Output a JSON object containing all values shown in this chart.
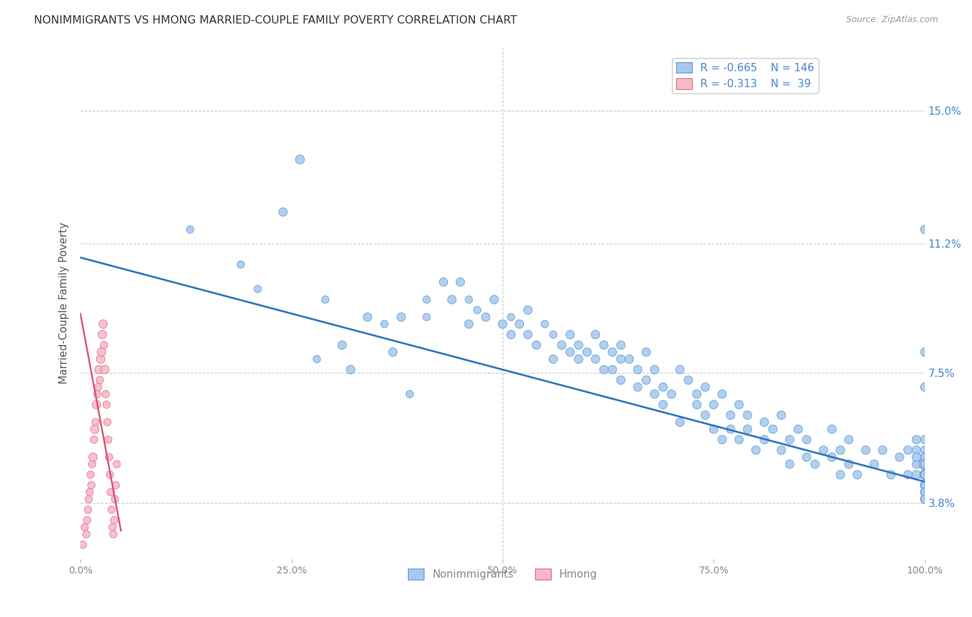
{
  "title": "NONIMMIGRANTS VS HMONG MARRIED-COUPLE FAMILY POVERTY CORRELATION CHART",
  "source": "Source: ZipAtlas.com",
  "ylabel": "Married-Couple Family Poverty",
  "ytick_labels": [
    "15.0%",
    "11.2%",
    "7.5%",
    "3.8%"
  ],
  "ytick_values": [
    0.15,
    0.112,
    0.075,
    0.038
  ],
  "xmin": 0.0,
  "xmax": 1.0,
  "ymin": 0.022,
  "ymax": 0.168,
  "legend_r_blue": "-0.665",
  "legend_n_blue": "146",
  "legend_r_pink": "-0.313",
  "legend_n_pink": "39",
  "blue_color": "#a8c8f0",
  "blue_edge_color": "#5599cc",
  "pink_color": "#f8b8c8",
  "pink_edge_color": "#e06888",
  "blue_line_color": "#3377bb",
  "pink_line_color": "#dd5577",
  "blue_trend": [
    0.0,
    1.0,
    0.108,
    0.044
  ],
  "pink_trend": [
    0.0,
    0.048,
    0.092,
    0.03
  ],
  "background_color": "#ffffff",
  "grid_color": "#cccccc",
  "blue_scatter_x": [
    0.13,
    0.19,
    0.21,
    0.24,
    0.26,
    0.28,
    0.29,
    0.31,
    0.32,
    0.34,
    0.36,
    0.37,
    0.38,
    0.39,
    0.41,
    0.41,
    0.43,
    0.44,
    0.45,
    0.46,
    0.46,
    0.47,
    0.48,
    0.49,
    0.5,
    0.51,
    0.51,
    0.52,
    0.53,
    0.53,
    0.54,
    0.55,
    0.56,
    0.56,
    0.57,
    0.58,
    0.58,
    0.59,
    0.59,
    0.6,
    0.61,
    0.61,
    0.62,
    0.62,
    0.63,
    0.63,
    0.64,
    0.64,
    0.64,
    0.65,
    0.66,
    0.66,
    0.67,
    0.67,
    0.68,
    0.68,
    0.69,
    0.69,
    0.7,
    0.71,
    0.71,
    0.72,
    0.73,
    0.73,
    0.74,
    0.74,
    0.75,
    0.75,
    0.76,
    0.76,
    0.77,
    0.77,
    0.78,
    0.78,
    0.79,
    0.79,
    0.8,
    0.81,
    0.81,
    0.82,
    0.83,
    0.83,
    0.84,
    0.84,
    0.85,
    0.86,
    0.86,
    0.87,
    0.88,
    0.89,
    0.89,
    0.9,
    0.9,
    0.91,
    0.91,
    0.92,
    0.93,
    0.94,
    0.95,
    0.96,
    0.97,
    0.98,
    0.98,
    0.99,
    0.99,
    0.99,
    0.99,
    0.99,
    1.0,
    1.0,
    1.0,
    1.0,
    1.0,
    1.0,
    1.0,
    1.0,
    1.0,
    1.0,
    1.0,
    1.0,
    1.0,
    1.0,
    1.0,
    1.0,
    1.0,
    1.0,
    1.0,
    1.0,
    1.0,
    1.0,
    1.0,
    1.0,
    1.0,
    1.0,
    1.0,
    1.0,
    1.0,
    1.0,
    1.0,
    1.0,
    1.0,
    1.0,
    1.0,
    1.0,
    1.0,
    1.0
  ],
  "blue_scatter_y": [
    0.116,
    0.106,
    0.099,
    0.121,
    0.136,
    0.079,
    0.096,
    0.083,
    0.076,
    0.091,
    0.089,
    0.081,
    0.091,
    0.069,
    0.096,
    0.091,
    0.101,
    0.096,
    0.101,
    0.096,
    0.089,
    0.093,
    0.091,
    0.096,
    0.089,
    0.086,
    0.091,
    0.089,
    0.093,
    0.086,
    0.083,
    0.089,
    0.079,
    0.086,
    0.083,
    0.081,
    0.086,
    0.079,
    0.083,
    0.081,
    0.086,
    0.079,
    0.083,
    0.076,
    0.081,
    0.076,
    0.079,
    0.073,
    0.083,
    0.079,
    0.076,
    0.071,
    0.073,
    0.081,
    0.069,
    0.076,
    0.071,
    0.066,
    0.069,
    0.076,
    0.061,
    0.073,
    0.066,
    0.069,
    0.063,
    0.071,
    0.059,
    0.066,
    0.069,
    0.056,
    0.063,
    0.059,
    0.066,
    0.056,
    0.063,
    0.059,
    0.053,
    0.061,
    0.056,
    0.059,
    0.053,
    0.063,
    0.049,
    0.056,
    0.059,
    0.051,
    0.056,
    0.049,
    0.053,
    0.059,
    0.051,
    0.053,
    0.046,
    0.056,
    0.049,
    0.046,
    0.053,
    0.049,
    0.053,
    0.046,
    0.051,
    0.046,
    0.053,
    0.056,
    0.053,
    0.049,
    0.046,
    0.051,
    0.043,
    0.056,
    0.053,
    0.049,
    0.046,
    0.043,
    0.051,
    0.116,
    0.081,
    0.071,
    0.049,
    0.046,
    0.043,
    0.051,
    0.049,
    0.046,
    0.043,
    0.051,
    0.041,
    0.046,
    0.043,
    0.049,
    0.046,
    0.043,
    0.041,
    0.039,
    0.051,
    0.049,
    0.046,
    0.043,
    0.041,
    0.039,
    0.049,
    0.046,
    0.043,
    0.041,
    0.039,
    0.046
  ],
  "blue_scatter_s": [
    60,
    60,
    60,
    80,
    90,
    60,
    60,
    80,
    80,
    80,
    60,
    80,
    80,
    60,
    60,
    60,
    80,
    80,
    80,
    60,
    80,
    60,
    80,
    80,
    80,
    80,
    60,
    80,
    80,
    80,
    80,
    60,
    80,
    60,
    80,
    80,
    80,
    80,
    80,
    80,
    80,
    80,
    80,
    80,
    80,
    80,
    80,
    80,
    80,
    80,
    80,
    80,
    80,
    80,
    80,
    80,
    80,
    80,
    80,
    80,
    80,
    80,
    80,
    80,
    80,
    80,
    80,
    80,
    80,
    80,
    80,
    80,
    80,
    80,
    80,
    80,
    80,
    80,
    80,
    80,
    80,
    80,
    80,
    80,
    80,
    80,
    80,
    80,
    80,
    80,
    80,
    80,
    80,
    80,
    80,
    80,
    80,
    80,
    80,
    80,
    80,
    80,
    80,
    80,
    80,
    80,
    80,
    80,
    80,
    80,
    80,
    160,
    110,
    80,
    80,
    80,
    80,
    80,
    80,
    80,
    80,
    80,
    80,
    80,
    80,
    80,
    80,
    80,
    80,
    80,
    80,
    80,
    80,
    80,
    80,
    80,
    80,
    80,
    80,
    80,
    80,
    80,
    80,
    80,
    80,
    80
  ],
  "pink_scatter_x": [
    0.003,
    0.005,
    0.007,
    0.008,
    0.009,
    0.01,
    0.011,
    0.012,
    0.013,
    0.014,
    0.015,
    0.016,
    0.017,
    0.018,
    0.019,
    0.02,
    0.021,
    0.022,
    0.023,
    0.024,
    0.025,
    0.026,
    0.027,
    0.028,
    0.029,
    0.03,
    0.031,
    0.032,
    0.033,
    0.034,
    0.035,
    0.036,
    0.037,
    0.038,
    0.039,
    0.04,
    0.041,
    0.042,
    0.043
  ],
  "pink_scatter_y": [
    0.026,
    0.031,
    0.029,
    0.033,
    0.036,
    0.039,
    0.041,
    0.046,
    0.043,
    0.049,
    0.051,
    0.056,
    0.059,
    0.061,
    0.066,
    0.069,
    0.071,
    0.076,
    0.073,
    0.079,
    0.081,
    0.086,
    0.089,
    0.083,
    0.076,
    0.069,
    0.066,
    0.061,
    0.056,
    0.051,
    0.046,
    0.041,
    0.036,
    0.031,
    0.029,
    0.033,
    0.039,
    0.043,
    0.049
  ],
  "pink_scatter_s": [
    60,
    60,
    60,
    60,
    60,
    60,
    60,
    60,
    60,
    60,
    80,
    60,
    80,
    60,
    80,
    60,
    60,
    80,
    60,
    80,
    80,
    80,
    80,
    60,
    80,
    60,
    60,
    60,
    60,
    60,
    60,
    60,
    60,
    60,
    60,
    60,
    60,
    60,
    60
  ]
}
